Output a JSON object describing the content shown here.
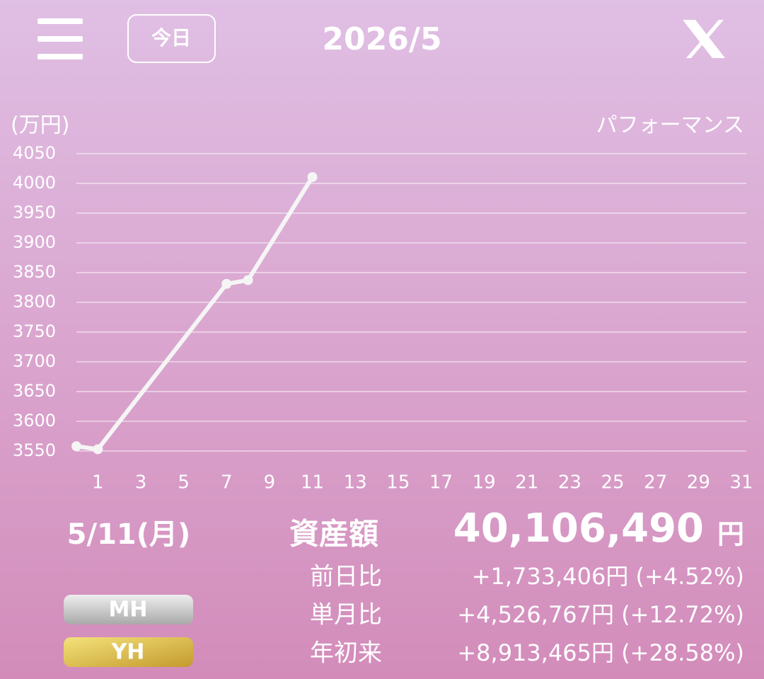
{
  "header": {
    "today_button": "今日",
    "month": "2026/5"
  },
  "chart_data": {
    "type": "line",
    "title": "パフォーマンス",
    "y_label": "(万円)",
    "x": [
      0,
      1,
      7,
      8,
      11
    ],
    "values": [
      3558,
      3553,
      3831,
      3837.3,
      4010.6
    ],
    "color": "#f5f5f5",
    "xlim": [
      0,
      31
    ],
    "xticks": [
      1,
      3,
      5,
      7,
      9,
      11,
      13,
      15,
      17,
      19,
      21,
      23,
      25,
      27,
      29,
      31
    ],
    "ylim": [
      3550,
      4050
    ],
    "yticks": [
      3550,
      3600,
      3650,
      3700,
      3750,
      3800,
      3850,
      3900,
      3950,
      4000,
      4050
    ],
    "grid": true
  },
  "summary": {
    "date": "5/11(月)",
    "asset_label": "資産額",
    "asset_value": "40,106,490",
    "asset_unit": "円",
    "rows": [
      {
        "label": "前日比",
        "value": "+1,733,406円 (+4.52%)"
      },
      {
        "label": "単月比",
        "value": "+4,526,767円 (+12.72%)"
      },
      {
        "label": "年初来",
        "value": "+8,913,465円 (+28.58%)"
      }
    ]
  },
  "buttons": [
    "MH",
    "YH"
  ]
}
